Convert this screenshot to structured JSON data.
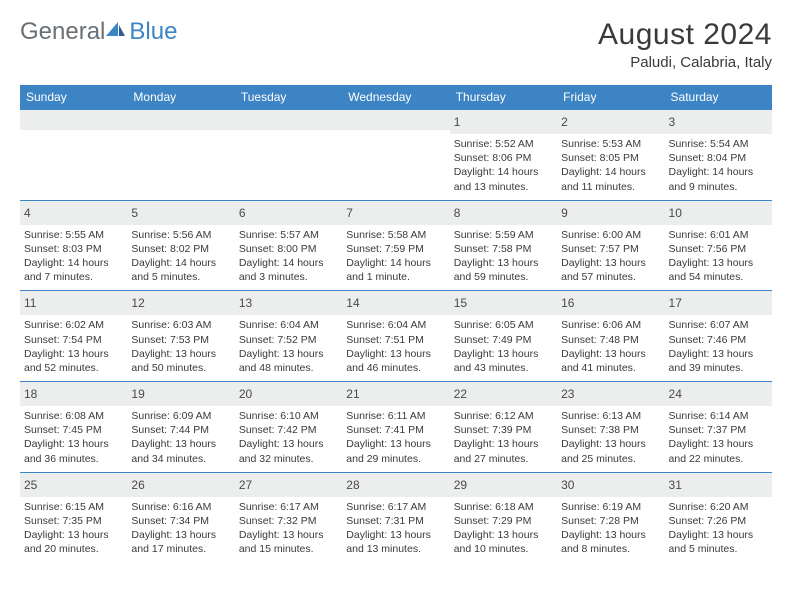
{
  "brand": {
    "part1": "General",
    "part2": "Blue"
  },
  "title": "August 2024",
  "location": "Paludi, Calabria, Italy",
  "colors": {
    "header_bg": "#3d84c4",
    "header_text": "#ffffff",
    "date_bg": "#eceded",
    "text": "#3a3a3a",
    "border": "#3d84c4",
    "logo_gray": "#6a6f73",
    "logo_blue": "#3d84c4"
  },
  "typography": {
    "title_size_pt": 22,
    "location_size_pt": 11,
    "header_size_pt": 9,
    "date_size_pt": 9,
    "info_size_pt": 8
  },
  "dayHeaders": [
    "Sunday",
    "Monday",
    "Tuesday",
    "Wednesday",
    "Thursday",
    "Friday",
    "Saturday"
  ],
  "weeks": [
    [
      null,
      null,
      null,
      null,
      {
        "n": "1",
        "sr": "5:52 AM",
        "ss": "8:06 PM",
        "dh": "14",
        "dm": "13"
      },
      {
        "n": "2",
        "sr": "5:53 AM",
        "ss": "8:05 PM",
        "dh": "14",
        "dm": "11"
      },
      {
        "n": "3",
        "sr": "5:54 AM",
        "ss": "8:04 PM",
        "dh": "14",
        "dm": "9"
      }
    ],
    [
      {
        "n": "4",
        "sr": "5:55 AM",
        "ss": "8:03 PM",
        "dh": "14",
        "dm": "7"
      },
      {
        "n": "5",
        "sr": "5:56 AM",
        "ss": "8:02 PM",
        "dh": "14",
        "dm": "5"
      },
      {
        "n": "6",
        "sr": "5:57 AM",
        "ss": "8:00 PM",
        "dh": "14",
        "dm": "3"
      },
      {
        "n": "7",
        "sr": "5:58 AM",
        "ss": "7:59 PM",
        "dh": "14",
        "dm": "1 minute"
      },
      {
        "n": "8",
        "sr": "5:59 AM",
        "ss": "7:58 PM",
        "dh": "13",
        "dm": "59"
      },
      {
        "n": "9",
        "sr": "6:00 AM",
        "ss": "7:57 PM",
        "dh": "13",
        "dm": "57"
      },
      {
        "n": "10",
        "sr": "6:01 AM",
        "ss": "7:56 PM",
        "dh": "13",
        "dm": "54"
      }
    ],
    [
      {
        "n": "11",
        "sr": "6:02 AM",
        "ss": "7:54 PM",
        "dh": "13",
        "dm": "52"
      },
      {
        "n": "12",
        "sr": "6:03 AM",
        "ss": "7:53 PM",
        "dh": "13",
        "dm": "50"
      },
      {
        "n": "13",
        "sr": "6:04 AM",
        "ss": "7:52 PM",
        "dh": "13",
        "dm": "48"
      },
      {
        "n": "14",
        "sr": "6:04 AM",
        "ss": "7:51 PM",
        "dh": "13",
        "dm": "46"
      },
      {
        "n": "15",
        "sr": "6:05 AM",
        "ss": "7:49 PM",
        "dh": "13",
        "dm": "43"
      },
      {
        "n": "16",
        "sr": "6:06 AM",
        "ss": "7:48 PM",
        "dh": "13",
        "dm": "41"
      },
      {
        "n": "17",
        "sr": "6:07 AM",
        "ss": "7:46 PM",
        "dh": "13",
        "dm": "39"
      }
    ],
    [
      {
        "n": "18",
        "sr": "6:08 AM",
        "ss": "7:45 PM",
        "dh": "13",
        "dm": "36"
      },
      {
        "n": "19",
        "sr": "6:09 AM",
        "ss": "7:44 PM",
        "dh": "13",
        "dm": "34"
      },
      {
        "n": "20",
        "sr": "6:10 AM",
        "ss": "7:42 PM",
        "dh": "13",
        "dm": "32"
      },
      {
        "n": "21",
        "sr": "6:11 AM",
        "ss": "7:41 PM",
        "dh": "13",
        "dm": "29"
      },
      {
        "n": "22",
        "sr": "6:12 AM",
        "ss": "7:39 PM",
        "dh": "13",
        "dm": "27"
      },
      {
        "n": "23",
        "sr": "6:13 AM",
        "ss": "7:38 PM",
        "dh": "13",
        "dm": "25"
      },
      {
        "n": "24",
        "sr": "6:14 AM",
        "ss": "7:37 PM",
        "dh": "13",
        "dm": "22"
      }
    ],
    [
      {
        "n": "25",
        "sr": "6:15 AM",
        "ss": "7:35 PM",
        "dh": "13",
        "dm": "20"
      },
      {
        "n": "26",
        "sr": "6:16 AM",
        "ss": "7:34 PM",
        "dh": "13",
        "dm": "17"
      },
      {
        "n": "27",
        "sr": "6:17 AM",
        "ss": "7:32 PM",
        "dh": "13",
        "dm": "15"
      },
      {
        "n": "28",
        "sr": "6:17 AM",
        "ss": "7:31 PM",
        "dh": "13",
        "dm": "13"
      },
      {
        "n": "29",
        "sr": "6:18 AM",
        "ss": "7:29 PM",
        "dh": "13",
        "dm": "10"
      },
      {
        "n": "30",
        "sr": "6:19 AM",
        "ss": "7:28 PM",
        "dh": "13",
        "dm": "8"
      },
      {
        "n": "31",
        "sr": "6:20 AM",
        "ss": "7:26 PM",
        "dh": "13",
        "dm": "5"
      }
    ]
  ]
}
